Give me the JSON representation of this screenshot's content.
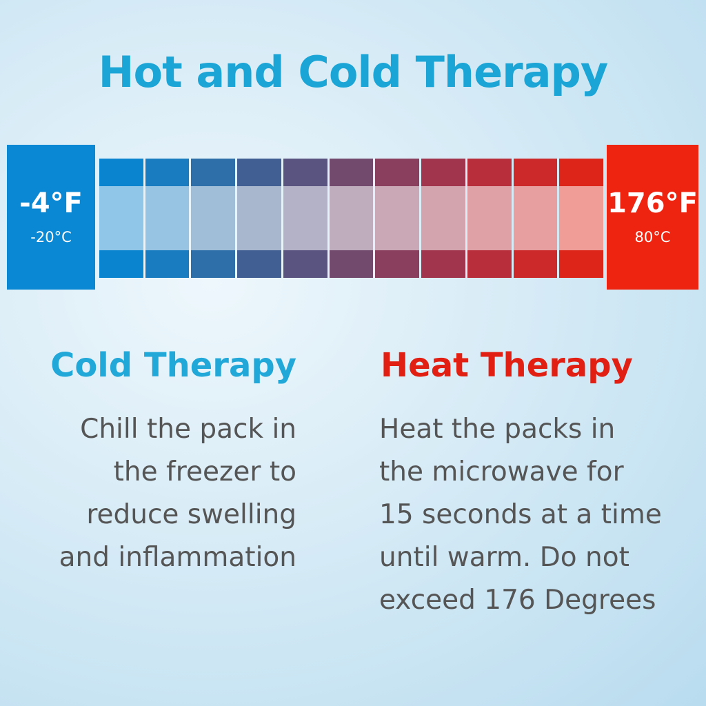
{
  "title": "Hot and Cold Therapy",
  "cold_box": {
    "fahrenheit": "-4°F",
    "celsius": "-20°C",
    "color": "#0a88d4"
  },
  "hot_box": {
    "fahrenheit": "176°F",
    "celsius": "80°C",
    "color": "#ee2410"
  },
  "scale_colors": [
    "#0a84cf",
    "#1a7cc0",
    "#2f6fa9",
    "#415f92",
    "#5a5480",
    "#724a6e",
    "#8a3f5e",
    "#a1354d",
    "#b82e3a",
    "#cc2a2a",
    "#de251a"
  ],
  "cold": {
    "heading": "Cold Therapy",
    "lines": [
      "Chill the pack in",
      "the freezer to",
      "reduce swelling",
      "and inflammation"
    ]
  },
  "heat": {
    "heading": "Heat Therapy",
    "lines": [
      "Heat the packs in",
      "the microwave for",
      "15 seconds at a time",
      "until warm. Do not",
      "exceed 176 Degrees"
    ]
  }
}
